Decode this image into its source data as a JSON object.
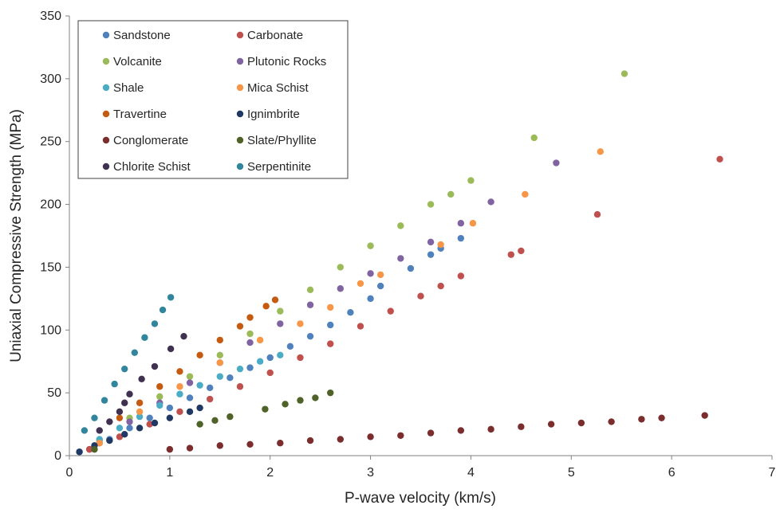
{
  "chart_data": {
    "type": "scatter",
    "title": "",
    "xlabel": "P-wave velocity (km/s)",
    "ylabel": "Uniaxial Compressive Strength (MPa)",
    "xlim": [
      0,
      7
    ],
    "ylim": [
      0,
      350
    ],
    "x_ticks": [
      0,
      1,
      2,
      3,
      4,
      5,
      6,
      7
    ],
    "y_ticks": [
      0,
      50,
      100,
      150,
      200,
      250,
      300,
      350
    ],
    "grid": false,
    "legend_position": "top-left",
    "series": [
      {
        "name": "Sandstone",
        "color": "#4f81bd",
        "x": [
          0.2,
          0.4,
          0.6,
          0.8,
          1.0,
          1.2,
          1.4,
          1.6,
          1.8,
          2.0,
          2.2,
          2.4,
          2.6,
          2.8,
          3.0,
          3.1,
          3.4,
          3.6,
          3.7,
          3.9
        ],
        "y": [
          5,
          13,
          22,
          30,
          38,
          46,
          54,
          62,
          70,
          78,
          87,
          95,
          104,
          114,
          125,
          135,
          149,
          160,
          165,
          173
        ]
      },
      {
        "name": "Carbonate",
        "color": "#c0504d",
        "x": [
          0.2,
          0.5,
          0.8,
          1.1,
          1.4,
          1.7,
          2.0,
          2.3,
          2.6,
          2.9,
          3.2,
          3.5,
          3.7,
          3.9,
          4.4,
          4.5,
          5.26,
          6.48
        ],
        "y": [
          5,
          15,
          25,
          35,
          45,
          55,
          66,
          78,
          89,
          103,
          115,
          127,
          135,
          143,
          160,
          163,
          192,
          236
        ]
      },
      {
        "name": "Volcanite",
        "color": "#9bbb59",
        "x": [
          0.3,
          0.6,
          0.9,
          1.2,
          1.5,
          1.8,
          2.1,
          2.4,
          2.7,
          3.0,
          3.3,
          3.6,
          3.8,
          4.0,
          4.63,
          5.53
        ],
        "y": [
          12,
          30,
          47,
          63,
          80,
          97,
          115,
          132,
          150,
          167,
          183,
          200,
          208,
          219,
          253,
          304
        ]
      },
      {
        "name": "Plutonic Rocks",
        "color": "#8064a2",
        "x": [
          0.3,
          0.6,
          0.9,
          1.2,
          1.5,
          1.8,
          2.1,
          2.4,
          2.7,
          3.0,
          3.3,
          3.6,
          3.9,
          4.2,
          4.85
        ],
        "y": [
          10,
          27,
          42,
          58,
          74,
          90,
          105,
          120,
          133,
          145,
          157,
          170,
          185,
          202,
          233
        ]
      },
      {
        "name": "Shale",
        "color": "#4bacc6",
        "x": [
          0.1,
          0.3,
          0.5,
          0.7,
          0.9,
          1.1,
          1.3,
          1.5,
          1.7,
          1.9,
          2.1
        ],
        "y": [
          3,
          13,
          22,
          31,
          40,
          49,
          56,
          63,
          69,
          75,
          80
        ]
      },
      {
        "name": "Mica Schist",
        "color": "#f79646",
        "x": [
          0.3,
          0.7,
          1.1,
          1.5,
          1.9,
          2.3,
          2.6,
          2.9,
          3.1,
          3.7,
          4.02,
          4.54,
          5.29
        ],
        "y": [
          10,
          35,
          55,
          74,
          92,
          105,
          118,
          137,
          144,
          168,
          185,
          208,
          242
        ]
      },
      {
        "name": "Travertine",
        "color": "#c55a11",
        "x": [
          0.5,
          0.7,
          0.9,
          1.1,
          1.3,
          1.5,
          1.7,
          1.8,
          1.96,
          2.05
        ],
        "y": [
          30,
          42,
          55,
          67,
          80,
          92,
          103,
          110,
          119,
          124
        ]
      },
      {
        "name": "Ignimbrite",
        "color": "#1f3864",
        "x": [
          0.1,
          0.25,
          0.4,
          0.55,
          0.7,
          0.85,
          1.0,
          1.2,
          1.3
        ],
        "y": [
          3,
          8,
          12,
          17,
          22,
          26,
          30,
          35,
          38
        ]
      },
      {
        "name": "Conglomerate",
        "color": "#7b2c2c",
        "x": [
          1.0,
          1.2,
          1.5,
          1.8,
          2.1,
          2.4,
          2.7,
          3.0,
          3.3,
          3.6,
          3.9,
          4.2,
          4.5,
          4.8,
          5.1,
          5.4,
          5.7,
          5.9,
          6.33
        ],
        "y": [
          5,
          6,
          8,
          9,
          10,
          12,
          13,
          15,
          16,
          18,
          20,
          21,
          23,
          25,
          26,
          27,
          29,
          30,
          32
        ]
      },
      {
        "name": "Slate/Phyllite",
        "color": "#4f6228",
        "x": [
          0.25,
          1.3,
          1.45,
          1.6,
          1.95,
          2.15,
          2.3,
          2.45,
          2.6
        ],
        "y": [
          5,
          25,
          28,
          31,
          37,
          41,
          44,
          46,
          50
        ]
      },
      {
        "name": "Chlorite Schist",
        "color": "#403151",
        "x": [
          0.3,
          0.4,
          0.5,
          0.55,
          0.6,
          0.72,
          0.85,
          1.01,
          1.14
        ],
        "y": [
          20,
          27,
          35,
          42,
          49,
          61,
          71,
          85,
          95
        ]
      },
      {
        "name": "Serpentinite",
        "color": "#31859c",
        "x": [
          0.15,
          0.25,
          0.35,
          0.45,
          0.55,
          0.65,
          0.75,
          0.85,
          0.93,
          1.01
        ],
        "y": [
          20,
          30,
          44,
          57,
          69,
          82,
          94,
          105,
          116,
          126
        ]
      }
    ]
  }
}
